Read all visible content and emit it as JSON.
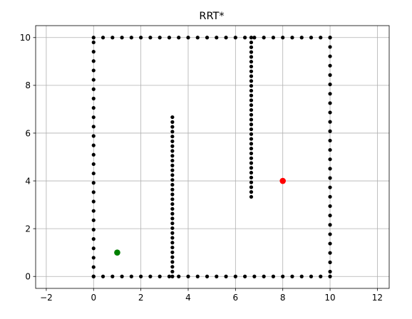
{
  "chart_data": {
    "type": "scatter",
    "title": "RRT*",
    "xlabel": "",
    "ylabel": "",
    "xlim": [
      -2.45,
      12.5
    ],
    "ylim": [
      -0.5,
      10.5
    ],
    "xticks": [
      -2,
      0,
      2,
      4,
      6,
      8,
      10,
      12
    ],
    "yticks": [
      0,
      2,
      4,
      6,
      8,
      10
    ],
    "grid": true,
    "colors": {
      "obstacles": "#000000",
      "start": "#008000",
      "goal": "#ff0000",
      "grid": "#b0b0b0"
    },
    "obstacle_segments": [
      {
        "from": [
          0.0,
          0.0
        ],
        "to": [
          10.0,
          0.0
        ],
        "spacing": 0.4
      },
      {
        "from": [
          0.0,
          10.0
        ],
        "to": [
          10.0,
          10.0
        ],
        "spacing": 0.4
      },
      {
        "from": [
          0.0,
          0.0
        ],
        "to": [
          0.0,
          9.8
        ],
        "spacing": 0.4
      },
      {
        "from": [
          10.0,
          0.2
        ],
        "to": [
          10.0,
          10.0
        ],
        "spacing": 0.4
      },
      {
        "from": [
          3.333,
          0.0
        ],
        "to": [
          3.333,
          6.667
        ],
        "spacing": 0.2
      },
      {
        "from": [
          6.667,
          3.333
        ],
        "to": [
          6.667,
          10.0
        ],
        "spacing": 0.2
      }
    ],
    "start": {
      "x": 1.0,
      "y": 1.0
    },
    "goal": {
      "x": 8.0,
      "y": 4.0
    }
  }
}
